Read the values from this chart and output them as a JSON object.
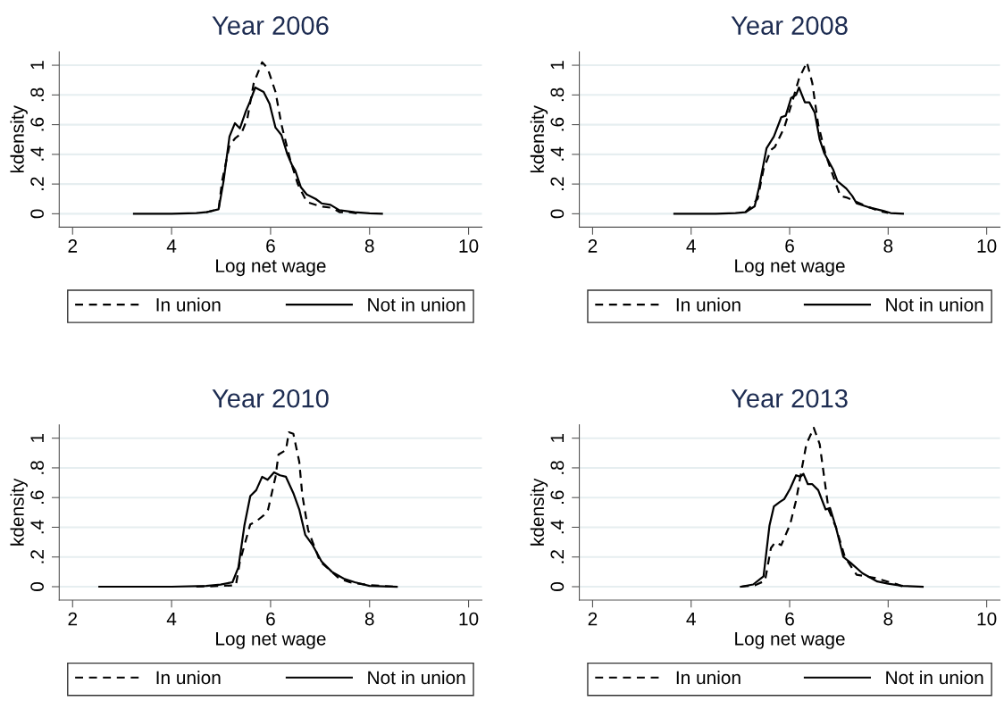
{
  "chart_data": [
    {
      "type": "line",
      "title": "Year 2006",
      "xlabel": "Log net wage",
      "ylabel": "kdensity",
      "xlim": [
        1.73,
        10.27
      ],
      "ylim": [
        -0.09,
        1.09
      ],
      "xticks": [
        2,
        4,
        6,
        8,
        10
      ],
      "yticks": [
        0,
        {
          "value": 0.2,
          "label": ".2"
        },
        {
          "value": 0.4,
          "label": ".4"
        },
        {
          "value": 0.6,
          "label": ".6"
        },
        {
          "value": 0.8,
          "label": ".8"
        },
        1
      ],
      "grid": "y",
      "legend": "bottom",
      "series": [
        {
          "name": "In union",
          "color": "#000000",
          "line_style": "dashed",
          "x": [
            4.7,
            4.95,
            5.02,
            5.17,
            5.29,
            5.41,
            5.53,
            5.66,
            5.83,
            5.94,
            6.1,
            6.22,
            6.4,
            6.55,
            6.73,
            7.0,
            7.24,
            7.4,
            7.6,
            7.8
          ],
          "values": [
            0.01,
            0.03,
            0.22,
            0.46,
            0.51,
            0.54,
            0.64,
            0.88,
            1.02,
            0.98,
            0.82,
            0.6,
            0.36,
            0.2,
            0.08,
            0.05,
            0.04,
            0.01,
            0.01,
            0.0
          ]
        },
        {
          "name": "Not in union",
          "color": "#000000",
          "line_style": "solid",
          "x": [
            3.24,
            4.0,
            4.5,
            4.69,
            4.95,
            5.05,
            5.17,
            5.28,
            5.38,
            5.5,
            5.59,
            5.69,
            5.86,
            5.98,
            6.1,
            6.22,
            6.34,
            6.43,
            6.5,
            6.61,
            6.73,
            6.91,
            7.03,
            7.21,
            7.39,
            7.7,
            8.0,
            8.25
          ],
          "values": [
            0.0,
            0.0,
            0.005,
            0.01,
            0.03,
            0.22,
            0.52,
            0.61,
            0.575,
            0.69,
            0.76,
            0.85,
            0.82,
            0.74,
            0.58,
            0.53,
            0.4,
            0.33,
            0.29,
            0.18,
            0.13,
            0.1,
            0.07,
            0.06,
            0.024,
            0.01,
            0.003,
            0.0
          ]
        }
      ]
    },
    {
      "type": "line",
      "title": "Year 2008",
      "xlabel": "Log net wage",
      "ylabel": "kdensity",
      "xlim": [
        1.73,
        10.27
      ],
      "ylim": [
        -0.09,
        1.09
      ],
      "xticks": [
        2,
        4,
        6,
        8,
        10
      ],
      "yticks": [
        0,
        {
          "value": 0.2,
          "label": ".2"
        },
        {
          "value": 0.4,
          "label": ".4"
        },
        {
          "value": 0.6,
          "label": ".6"
        },
        {
          "value": 0.8,
          "label": ".8"
        },
        1
      ],
      "grid": "y",
      "legend": "bottom",
      "series": [
        {
          "name": "In union",
          "color": "#000000",
          "line_style": "dashed",
          "x": [
            5.1,
            5.35,
            5.47,
            5.62,
            5.7,
            5.89,
            6.04,
            6.19,
            6.35,
            6.46,
            6.58,
            6.73,
            6.94,
            7.03,
            7.15,
            7.5,
            7.8,
            8.0
          ],
          "values": [
            0.01,
            0.1,
            0.3,
            0.43,
            0.45,
            0.58,
            0.74,
            0.91,
            1.02,
            0.88,
            0.6,
            0.4,
            0.2,
            0.12,
            0.11,
            0.06,
            0.02,
            0.005
          ]
        },
        {
          "name": "Not in union",
          "color": "#000000",
          "line_style": "solid",
          "x": [
            3.66,
            4.5,
            4.9,
            5.1,
            5.29,
            5.38,
            5.53,
            5.68,
            5.83,
            5.92,
            6.03,
            6.13,
            6.19,
            6.31,
            6.4,
            6.51,
            6.61,
            6.7,
            6.88,
            6.97,
            7.15,
            7.27,
            7.36,
            7.6,
            7.9,
            8.05,
            8.3
          ],
          "values": [
            0.0,
            0.0,
            0.005,
            0.01,
            0.05,
            0.18,
            0.44,
            0.52,
            0.65,
            0.66,
            0.78,
            0.8,
            0.85,
            0.75,
            0.75,
            0.68,
            0.5,
            0.41,
            0.3,
            0.22,
            0.17,
            0.12,
            0.07,
            0.044,
            0.02,
            0.005,
            0.0
          ]
        }
      ]
    },
    {
      "type": "line",
      "title": "Year 2010",
      "xlabel": "Log net wage",
      "ylabel": "kdensity",
      "xlim": [
        1.73,
        10.27
      ],
      "ylim": [
        -0.09,
        1.09
      ],
      "xticks": [
        2,
        4,
        6,
        8,
        10
      ],
      "yticks": [
        0,
        {
          "value": 0.2,
          "label": ".2"
        },
        {
          "value": 0.4,
          "label": ".4"
        },
        {
          "value": 0.6,
          "label": ".6"
        },
        {
          "value": 0.8,
          "label": ".8"
        },
        1
      ],
      "grid": "y",
      "legend": "bottom",
      "series": [
        {
          "name": "In union",
          "color": "#000000",
          "line_style": "dashed",
          "x": [
            4.5,
            5.0,
            5.3,
            5.38,
            5.59,
            5.71,
            5.86,
            5.95,
            6.1,
            6.16,
            6.31,
            6.37,
            6.46,
            6.58,
            6.64,
            6.76,
            6.85,
            7.0,
            7.39,
            7.6,
            8.0,
            8.5
          ],
          "values": [
            0.0,
            0.005,
            0.01,
            0.17,
            0.42,
            0.44,
            0.48,
            0.52,
            0.74,
            0.89,
            0.92,
            1.04,
            1.03,
            0.84,
            0.62,
            0.38,
            0.3,
            0.17,
            0.054,
            0.03,
            0.01,
            0.0
          ]
        },
        {
          "name": "Not in union",
          "color": "#000000",
          "line_style": "solid",
          "x": [
            2.54,
            4.0,
            4.7,
            4.99,
            5.23,
            5.35,
            5.47,
            5.59,
            5.71,
            5.83,
            5.94,
            6.07,
            6.19,
            6.31,
            6.46,
            6.58,
            6.7,
            6.85,
            7.03,
            7.24,
            7.48,
            7.7,
            8.0,
            8.55
          ],
          "values": [
            0.0,
            0.0,
            0.005,
            0.014,
            0.03,
            0.13,
            0.41,
            0.61,
            0.65,
            0.74,
            0.72,
            0.77,
            0.75,
            0.74,
            0.63,
            0.52,
            0.35,
            0.28,
            0.17,
            0.1,
            0.054,
            0.03,
            0.005,
            0.0
          ]
        }
      ]
    },
    {
      "type": "line",
      "title": "Year 2013",
      "xlabel": "Log net wage",
      "ylabel": "kdensity",
      "xlim": [
        1.73,
        10.27
      ],
      "ylim": [
        -0.09,
        1.09
      ],
      "xticks": [
        2,
        4,
        6,
        8,
        10
      ],
      "yticks": [
        0,
        {
          "value": 0.2,
          "label": ".2"
        },
        {
          "value": 0.4,
          "label": ".4"
        },
        {
          "value": 0.6,
          "label": ".6"
        },
        {
          "value": 0.8,
          "label": ".8"
        },
        1
      ],
      "grid": "y",
      "legend": "bottom",
      "series": [
        {
          "name": "In union",
          "color": "#000000",
          "line_style": "dashed",
          "x": [
            5.01,
            5.3,
            5.5,
            5.62,
            5.71,
            5.83,
            6.01,
            6.13,
            6.25,
            6.34,
            6.49,
            6.61,
            6.79,
            6.94,
            7.12,
            7.36,
            7.72,
            8.2,
            8.3
          ],
          "values": [
            0.0,
            0.01,
            0.04,
            0.26,
            0.3,
            0.28,
            0.42,
            0.58,
            0.8,
            0.96,
            1.07,
            0.96,
            0.52,
            0.4,
            0.2,
            0.08,
            0.06,
            0.014,
            0.0
          ]
        },
        {
          "name": "Not in union",
          "color": "#000000",
          "line_style": "solid",
          "x": [
            5.01,
            5.26,
            5.47,
            5.59,
            5.68,
            5.8,
            5.89,
            6.01,
            6.13,
            6.22,
            6.28,
            6.37,
            6.46,
            6.58,
            6.73,
            6.82,
            6.94,
            7.09,
            7.24,
            7.48,
            7.78,
            8.0,
            8.3,
            8.7
          ],
          "values": [
            0.0,
            0.015,
            0.07,
            0.41,
            0.54,
            0.57,
            0.59,
            0.66,
            0.75,
            0.74,
            0.76,
            0.69,
            0.69,
            0.65,
            0.52,
            0.53,
            0.4,
            0.2,
            0.16,
            0.09,
            0.035,
            0.02,
            0.005,
            0.0
          ]
        }
      ]
    }
  ]
}
